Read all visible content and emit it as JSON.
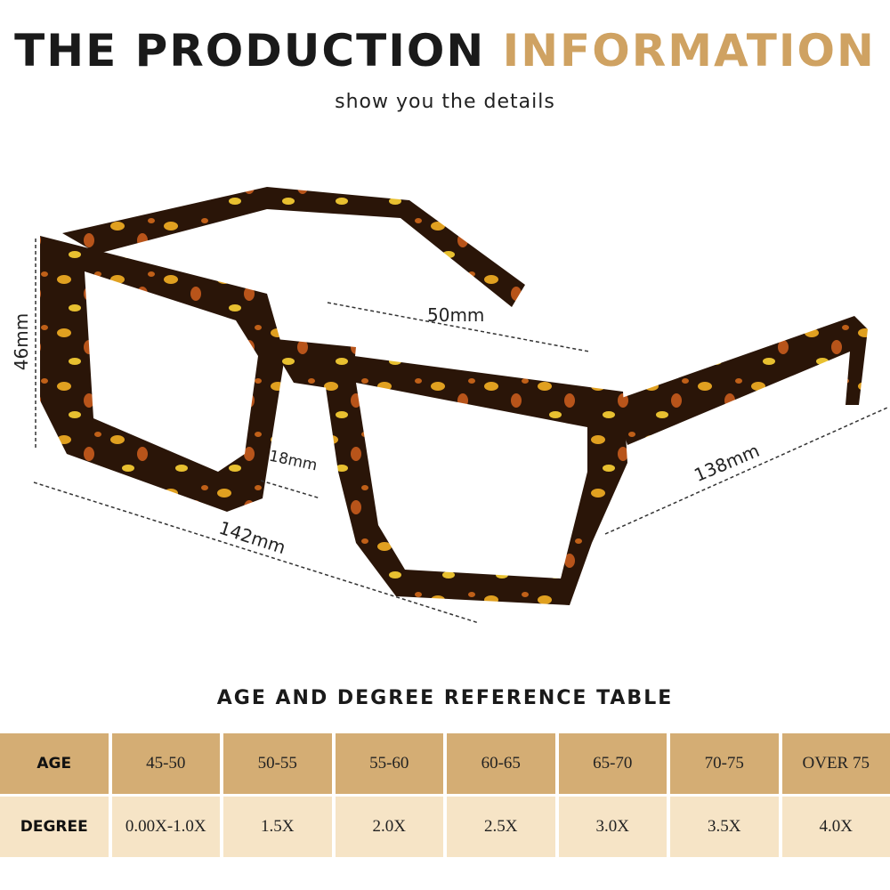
{
  "header": {
    "title_dark": "THE PRODUCTION",
    "title_gold": "INFORMATION",
    "subtitle": "show you the details"
  },
  "dimensions": {
    "lens_width": "50mm",
    "lens_height": "46mm",
    "bridge": "18mm",
    "frame_width": "142mm",
    "temple_length": "138mm"
  },
  "reference_table": {
    "title": "AGE AND DEGREE REFERENCE TABLE",
    "row_labels": [
      "AGE",
      "DEGREE"
    ],
    "ages": [
      "45-50",
      "50-55",
      "55-60",
      "60-65",
      "65-70",
      "70-75",
      "OVER 75"
    ],
    "degrees": [
      "0.00X-1.0X",
      "1.5X",
      "2.0X",
      "2.5X",
      "3.0X",
      "3.5X",
      "4.0X"
    ]
  },
  "colors": {
    "gold": "#cfa262",
    "header_row": "#d4ad74",
    "value_row": "#f6e4c6",
    "frame": "#2a1508"
  }
}
